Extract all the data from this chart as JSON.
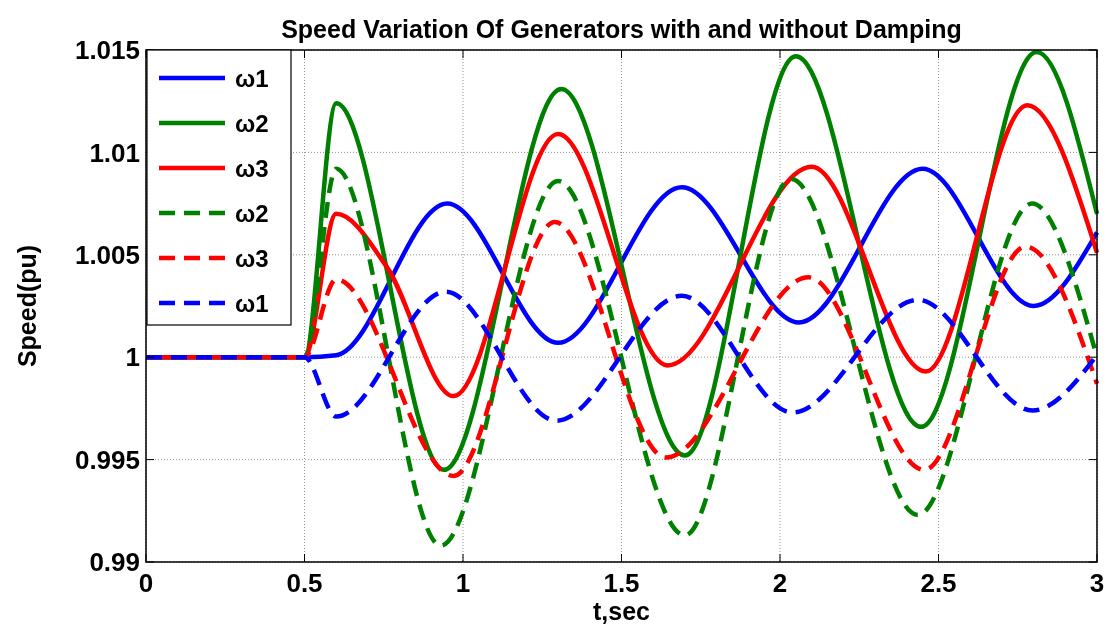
{
  "chart_data": {
    "type": "line",
    "title": "Speed Variation  Of Generators with and without Damping",
    "xlabel": "t,sec",
    "ylabel": "Speed(pu)",
    "xlim": [
      0,
      3
    ],
    "xticks": [
      0,
      0.5,
      1,
      1.5,
      2,
      2.5,
      3
    ],
    "ylim": [
      0.99,
      1.015
    ],
    "yticks": [
      0.99,
      0.995,
      1,
      1.005,
      1.01,
      1.015
    ],
    "grid": true,
    "legend": "top left",
    "marker": "none",
    "series": [
      {
        "name": "ω1",
        "color": "#0000ff",
        "line_style": "solid",
        "x": [
          0,
          0.5,
          0.6,
          0.95,
          1.3,
          1.69,
          2.06,
          2.45,
          2.8,
          3
        ],
        "values": [
          1,
          1,
          1.0001,
          1.0075,
          1.0007,
          1.0083,
          1.0017,
          1.0092,
          1.0025,
          1.0061
        ]
      },
      {
        "name": "ω2",
        "color": "#008000",
        "line_style": "solid",
        "x": [
          0,
          0.5,
          0.6,
          0.94,
          1.31,
          1.7,
          2.05,
          2.445,
          2.81,
          3
        ],
        "values": [
          1,
          1,
          1.0124,
          0.9945,
          1.0131,
          0.9952,
          1.0147,
          0.9966,
          1.0149,
          1.007
        ]
      },
      {
        "name": "ω3",
        "color": "#ff0000",
        "line_style": "solid",
        "x": [
          0,
          0.5,
          0.6,
          0.76,
          0.97,
          1.3,
          1.645,
          2.1,
          2.46,
          2.78,
          3
        ],
        "values": [
          1,
          1,
          1.007,
          1.0044,
          0.9981,
          1.0109,
          0.9996,
          1.0093,
          0.9993,
          1.0123,
          1.0051
        ]
      },
      {
        "name": "ω2",
        "color": "#008000",
        "line_style": "dashed",
        "x": [
          0,
          0.5,
          0.6,
          0.93,
          1.3,
          1.7,
          2.035,
          2.435,
          2.795,
          3
        ],
        "values": [
          1,
          1,
          1.0092,
          0.9908,
          1.0086,
          0.9913,
          1.0087,
          0.9923,
          1.0075,
          1
        ]
      },
      {
        "name": "ω3",
        "color": "#ff0000",
        "line_style": "dashed",
        "x": [
          0,
          0.5,
          0.6,
          0.97,
          1.29,
          1.64,
          2.09,
          2.455,
          2.775,
          3
        ],
        "values": [
          1,
          1,
          1.0038,
          0.9942,
          1.0066,
          0.9951,
          1.0039,
          0.9945,
          1.0054,
          0.9987
        ]
      },
      {
        "name": "ω1",
        "color": "#0000ff",
        "line_style": "dashed",
        "x": [
          0,
          0.5,
          0.6,
          0.945,
          1.295,
          1.69,
          2.04,
          2.435,
          2.797,
          3
        ],
        "values": [
          1,
          1,
          0.9971,
          1.0032,
          0.9969,
          1.003,
          0.9973,
          1.0028,
          0.9974,
          1.0001
        ]
      }
    ]
  }
}
